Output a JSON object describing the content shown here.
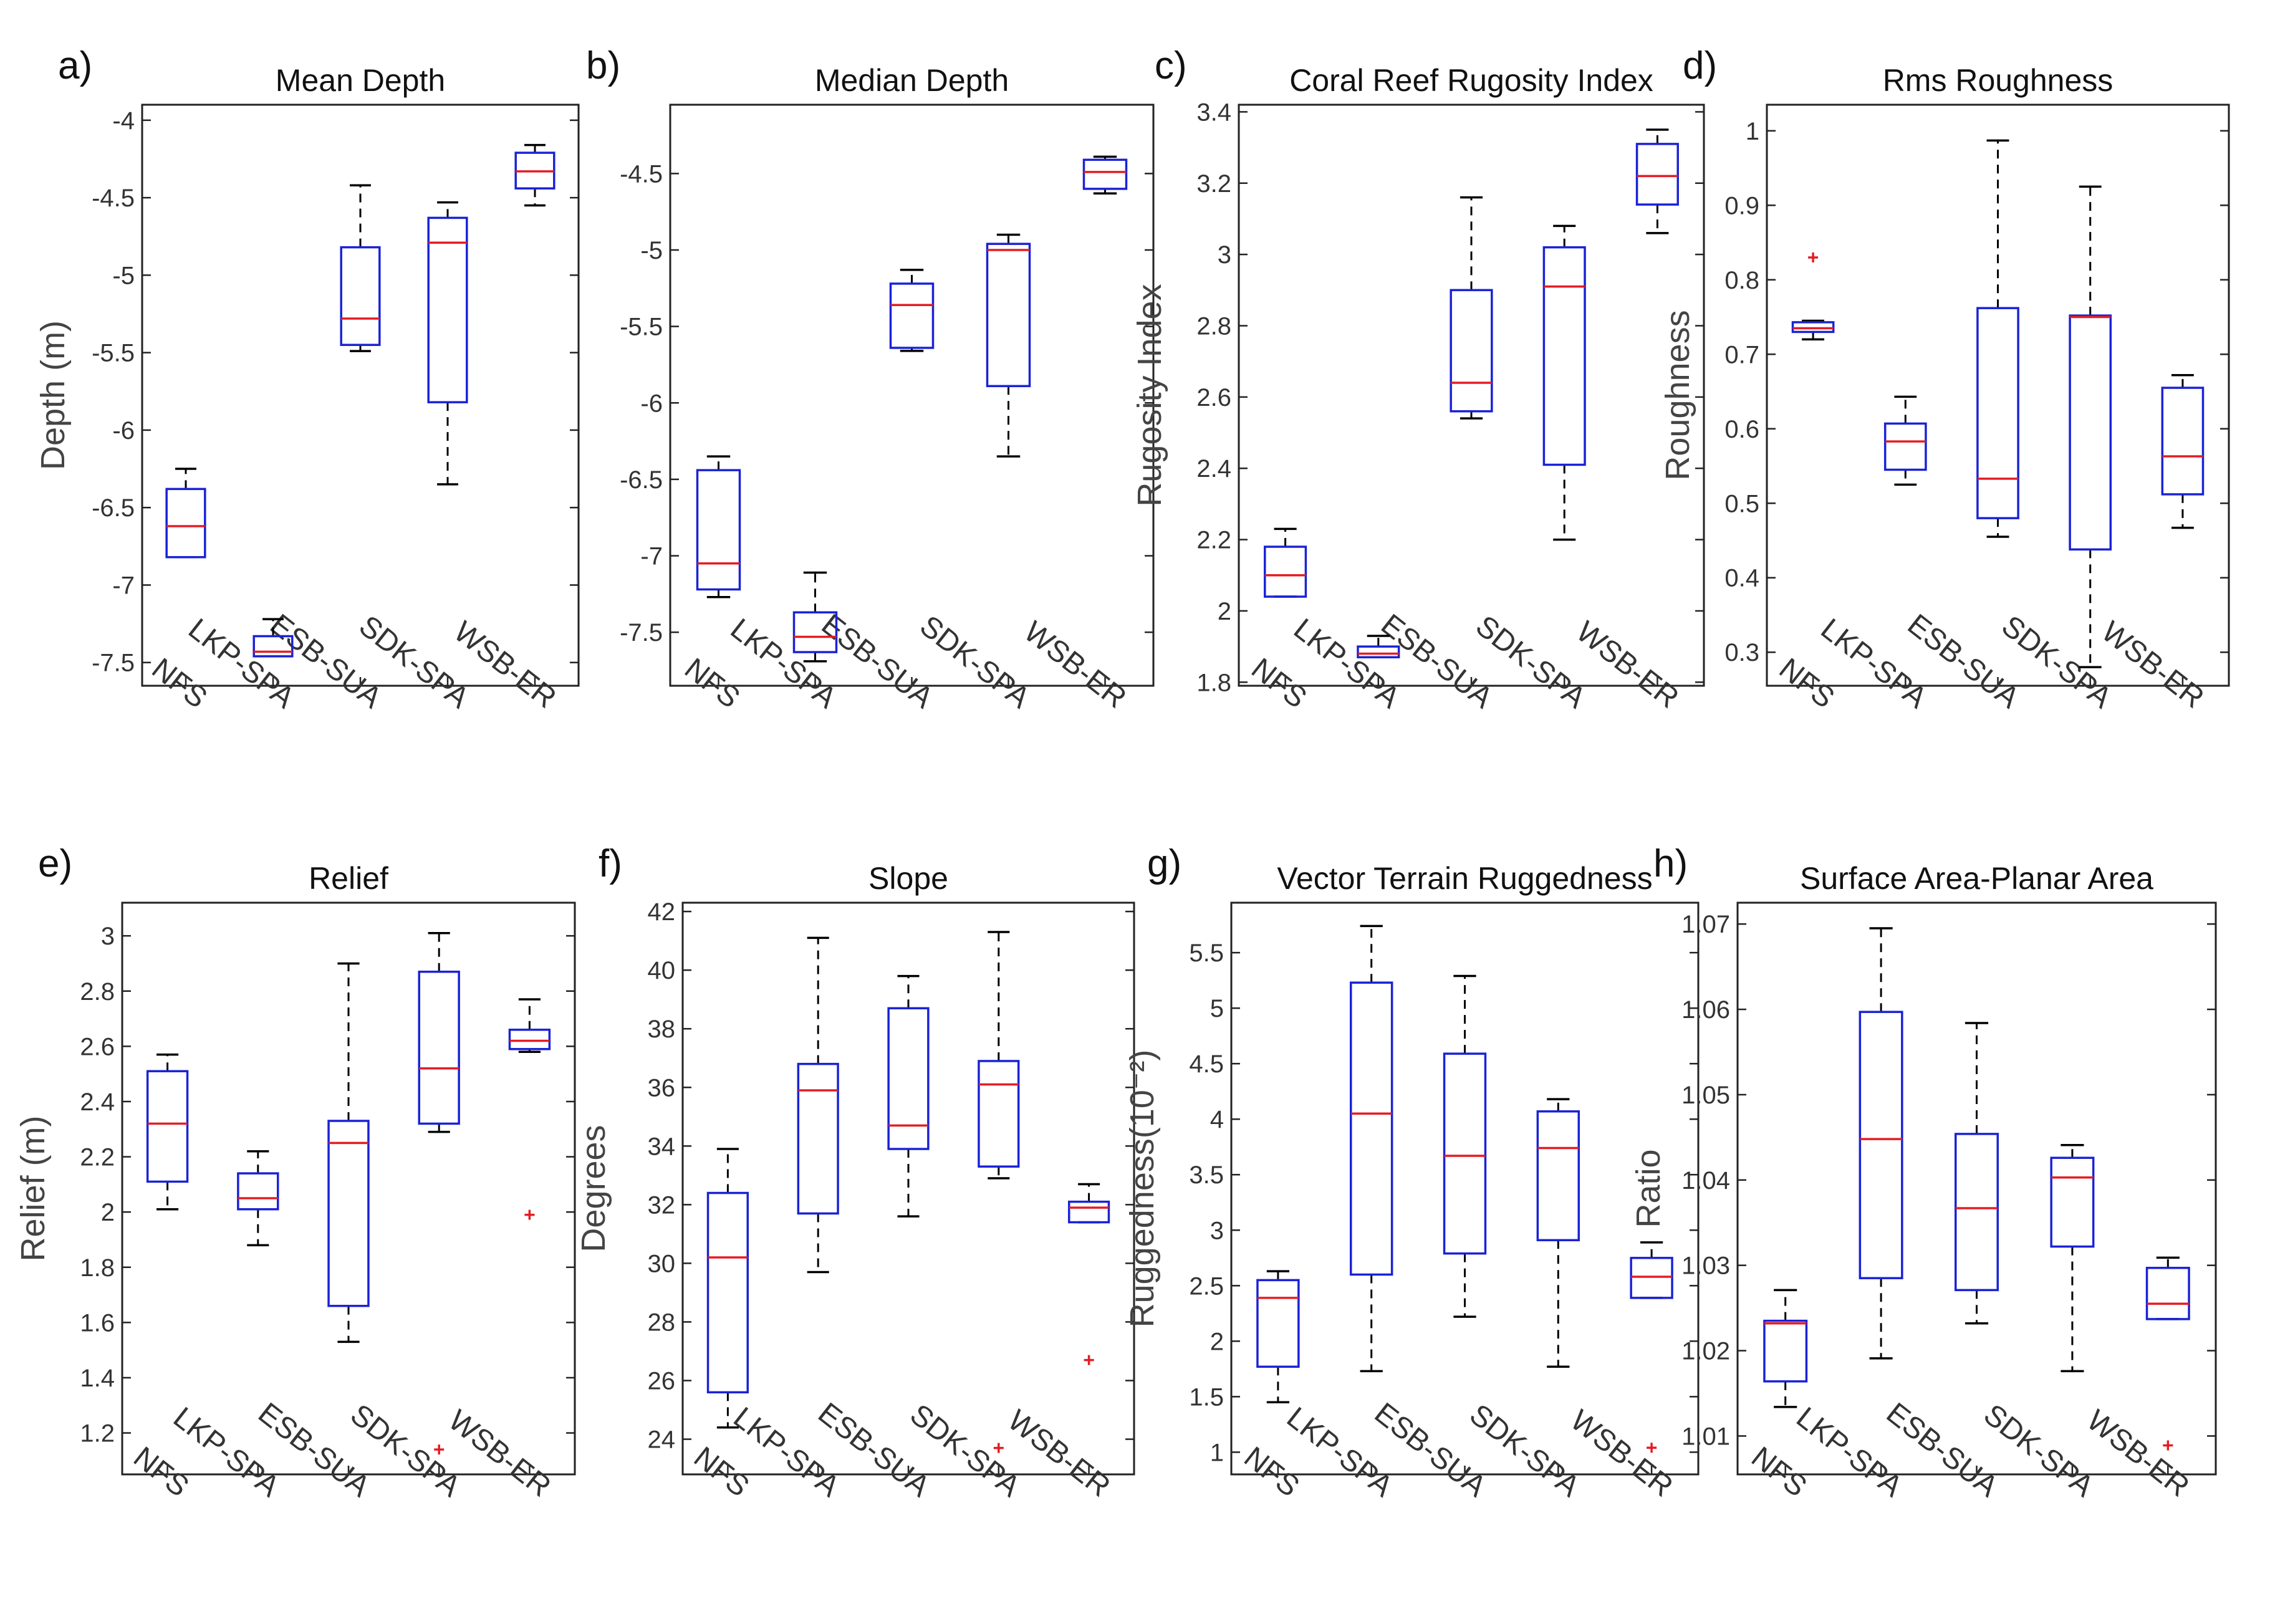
{
  "figure": {
    "type": "box-panels",
    "colors": {
      "box": "#1a22d6",
      "median": "#e51c23",
      "whisker": "#000000",
      "outlier": "#e51c23"
    }
  },
  "chart_data": [
    {
      "type": "box",
      "letter": "a)",
      "title": "Mean Depth",
      "ylabel": "Depth (m)",
      "ylim": [
        -7.65,
        -3.9
      ],
      "yticks": [
        -4,
        -4.5,
        -5,
        -5.5,
        -6,
        -6.5,
        -7,
        -7.5
      ],
      "categories": [
        "NFS",
        "LKP-SPA",
        "ESB-SUA",
        "SDK-SPA",
        "WSB-ER"
      ],
      "boxes": [
        {
          "whislo": -6.82,
          "q1": -6.82,
          "med": -6.62,
          "q3": -6.38,
          "whishi": -6.25,
          "fliers": []
        },
        {
          "whislo": -7.46,
          "q1": -7.46,
          "med": -7.43,
          "q3": -7.33,
          "whishi": -7.22,
          "fliers": []
        },
        {
          "whislo": -5.49,
          "q1": -5.45,
          "med": -5.28,
          "q3": -4.82,
          "whishi": -4.42,
          "fliers": []
        },
        {
          "whislo": -6.35,
          "q1": -5.82,
          "med": -4.79,
          "q3": -4.63,
          "whishi": -4.53,
          "fliers": []
        },
        {
          "whislo": -4.55,
          "q1": -4.44,
          "med": -4.33,
          "q3": -4.21,
          "whishi": -4.16,
          "fliers": []
        }
      ]
    },
    {
      "type": "box",
      "letter": "b)",
      "title": "Median Depth",
      "ylabel": "",
      "ylim": [
        -7.85,
        -4.05
      ],
      "yticks": [
        -4.5,
        -5,
        -5.5,
        -6,
        -6.5,
        -7,
        -7.5
      ],
      "categories": [
        "NFS",
        "LKP-SPA",
        "ESB-SUA",
        "SDK-SPA",
        "WSB-ER"
      ],
      "boxes": [
        {
          "whislo": -7.27,
          "q1": -7.22,
          "med": -7.05,
          "q3": -6.44,
          "whishi": -6.35,
          "fliers": []
        },
        {
          "whislo": -7.69,
          "q1": -7.63,
          "med": -7.53,
          "q3": -7.37,
          "whishi": -7.11,
          "fliers": []
        },
        {
          "whislo": -5.66,
          "q1": -5.64,
          "med": -5.36,
          "q3": -5.22,
          "whishi": -5.13,
          "fliers": []
        },
        {
          "whislo": -6.35,
          "q1": -5.89,
          "med": -5.0,
          "q3": -4.96,
          "whishi": -4.9,
          "fliers": []
        },
        {
          "whislo": -4.63,
          "q1": -4.6,
          "med": -4.49,
          "q3": -4.41,
          "whishi": -4.39,
          "fliers": []
        }
      ]
    },
    {
      "type": "box",
      "letter": "c)",
      "title": "Coral Reef Rugosity Index",
      "ylabel": "Rugosity Index",
      "ylim": [
        1.79,
        3.42
      ],
      "yticks": [
        1.8,
        2,
        2.2,
        2.4,
        2.6,
        2.8,
        3,
        3.2,
        3.4
      ],
      "categories": [
        "NFS",
        "LKP-SPA",
        "ESB-SUA",
        "SDK-SPA",
        "WSB-ER"
      ],
      "boxes": [
        {
          "whislo": 2.04,
          "q1": 2.04,
          "med": 2.1,
          "q3": 2.18,
          "whishi": 2.23,
          "fliers": []
        },
        {
          "whislo": 1.87,
          "q1": 1.87,
          "med": 1.88,
          "q3": 1.9,
          "whishi": 1.93,
          "fliers": []
        },
        {
          "whislo": 2.54,
          "q1": 2.56,
          "med": 2.64,
          "q3": 2.9,
          "whishi": 3.16,
          "fliers": []
        },
        {
          "whislo": 2.2,
          "q1": 2.41,
          "med": 2.91,
          "q3": 3.02,
          "whishi": 3.08,
          "fliers": []
        },
        {
          "whislo": 3.06,
          "q1": 3.14,
          "med": 3.22,
          "q3": 3.31,
          "whishi": 3.35,
          "fliers": []
        }
      ]
    },
    {
      "type": "box",
      "letter": "d)",
      "title": "Rms Roughness",
      "ylabel": "Roughness",
      "ylim": [
        0.255,
        1.035
      ],
      "yticks": [
        0.3,
        0.4,
        0.5,
        0.6,
        0.7,
        0.8,
        0.9,
        1
      ],
      "categories": [
        "NFS",
        "LKP-SPA",
        "ESB-SUA",
        "SDK-SPA",
        "WSB-ER"
      ],
      "boxes": [
        {
          "whislo": 0.72,
          "q1": 0.73,
          "med": 0.735,
          "q3": 0.743,
          "whishi": 0.745,
          "fliers": [
            0.83
          ]
        },
        {
          "whislo": 0.525,
          "q1": 0.545,
          "med": 0.583,
          "q3": 0.607,
          "whishi": 0.643,
          "fliers": []
        },
        {
          "whislo": 0.455,
          "q1": 0.48,
          "med": 0.533,
          "q3": 0.762,
          "whishi": 0.987,
          "fliers": []
        },
        {
          "whislo": 0.28,
          "q1": 0.438,
          "med": 0.75,
          "q3": 0.752,
          "whishi": 0.925,
          "fliers": []
        },
        {
          "whislo": 0.467,
          "q1": 0.512,
          "med": 0.563,
          "q3": 0.655,
          "whishi": 0.672,
          "fliers": []
        }
      ]
    },
    {
      "type": "box",
      "letter": "e)",
      "title": "Relief",
      "ylabel": "Relief (m)",
      "ylim": [
        1.05,
        3.12
      ],
      "yticks": [
        1.2,
        1.4,
        1.6,
        1.8,
        2,
        2.2,
        2.4,
        2.6,
        2.8,
        3
      ],
      "categories": [
        "NFS",
        "LKP-SPA",
        "ESB-SUA",
        "SDK-SPA",
        "WSB-ER"
      ],
      "boxes": [
        {
          "whislo": 2.01,
          "q1": 2.11,
          "med": 2.32,
          "q3": 2.51,
          "whishi": 2.57,
          "fliers": []
        },
        {
          "whislo": 1.88,
          "q1": 2.01,
          "med": 2.05,
          "q3": 2.14,
          "whishi": 2.22,
          "fliers": []
        },
        {
          "whislo": 1.53,
          "q1": 1.66,
          "med": 2.25,
          "q3": 2.33,
          "whishi": 2.9,
          "fliers": []
        },
        {
          "whislo": 2.29,
          "q1": 2.32,
          "med": 2.52,
          "q3": 2.87,
          "whishi": 3.01,
          "fliers": [
            1.14
          ]
        },
        {
          "whislo": 2.58,
          "q1": 2.59,
          "med": 2.62,
          "q3": 2.66,
          "whishi": 2.77,
          "fliers": [
            1.99
          ]
        }
      ]
    },
    {
      "type": "box",
      "letter": "f)",
      "title": "Slope",
      "ylabel": "Degrees",
      "ylim": [
        22.8,
        42.3
      ],
      "yticks": [
        24,
        26,
        28,
        30,
        32,
        34,
        36,
        38,
        40,
        42
      ],
      "categories": [
        "NFS",
        "LKP-SPA",
        "ESB-SUA",
        "SDK-SPA",
        "WSB-ER"
      ],
      "boxes": [
        {
          "whislo": 24.4,
          "q1": 25.6,
          "med": 30.2,
          "q3": 32.4,
          "whishi": 33.9,
          "fliers": []
        },
        {
          "whislo": 29.7,
          "q1": 31.7,
          "med": 35.9,
          "q3": 36.8,
          "whishi": 41.1,
          "fliers": []
        },
        {
          "whislo": 31.6,
          "q1": 33.9,
          "med": 34.7,
          "q3": 38.7,
          "whishi": 39.8,
          "fliers": []
        },
        {
          "whislo": 32.9,
          "q1": 33.3,
          "med": 36.1,
          "q3": 36.9,
          "whishi": 41.3,
          "fliers": [
            23.7
          ]
        },
        {
          "whislo": 31.4,
          "q1": 31.4,
          "med": 31.9,
          "q3": 32.1,
          "whishi": 32.7,
          "fliers": [
            26.7
          ]
        }
      ]
    },
    {
      "type": "box",
      "letter": "g)",
      "title": "Vector Terrain Ruggedness",
      "ylabel": "Ruggedness(10⁻²)",
      "ylim": [
        0.8,
        5.95
      ],
      "yticks": [
        1,
        1.5,
        2,
        2.5,
        3,
        3.5,
        4,
        4.5,
        5,
        5.5
      ],
      "categories": [
        "NFS",
        "LKP-SPA",
        "ESB-SUA",
        "SDK-SPA",
        "WSB-ER"
      ],
      "boxes": [
        {
          "whislo": 1.45,
          "q1": 1.77,
          "med": 2.39,
          "q3": 2.55,
          "whishi": 2.63,
          "fliers": []
        },
        {
          "whislo": 1.73,
          "q1": 2.6,
          "med": 4.05,
          "q3": 5.23,
          "whishi": 5.74,
          "fliers": []
        },
        {
          "whislo": 2.22,
          "q1": 2.79,
          "med": 3.67,
          "q3": 4.59,
          "whishi": 5.29,
          "fliers": []
        },
        {
          "whislo": 1.77,
          "q1": 2.91,
          "med": 3.74,
          "q3": 4.07,
          "whishi": 4.18,
          "fliers": []
        },
        {
          "whislo": 2.39,
          "q1": 2.39,
          "med": 2.58,
          "q3": 2.75,
          "whishi": 2.89,
          "fliers": [
            1.04
          ]
        }
      ]
    },
    {
      "type": "box",
      "letter": "h)",
      "title": "Surface Area-Planar Area",
      "ylabel": "Ratio",
      "ylim": [
        1.0055,
        1.0725
      ],
      "yticks": [
        1.01,
        1.02,
        1.03,
        1.04,
        1.05,
        1.06,
        1.07
      ],
      "categories": [
        "NFS",
        "LKP-SPA",
        "ESB-SUA",
        "SDK-SPA",
        "WSB-ER"
      ],
      "boxes": [
        {
          "whislo": 1.0134,
          "q1": 1.0164,
          "med": 1.0232,
          "q3": 1.0235,
          "whishi": 1.0271,
          "fliers": []
        },
        {
          "whislo": 1.0191,
          "q1": 1.0285,
          "med": 1.0448,
          "q3": 1.0597,
          "whishi": 1.0695,
          "fliers": []
        },
        {
          "whislo": 1.0232,
          "q1": 1.0271,
          "med": 1.0367,
          "q3": 1.0454,
          "whishi": 1.0584,
          "fliers": []
        },
        {
          "whislo": 1.0176,
          "q1": 1.0322,
          "med": 1.0403,
          "q3": 1.0426,
          "whishi": 1.0441,
          "fliers": []
        },
        {
          "whislo": 1.0237,
          "q1": 1.0237,
          "med": 1.0255,
          "q3": 1.0297,
          "whishi": 1.0309,
          "fliers": [
            1.0089
          ]
        }
      ]
    }
  ]
}
